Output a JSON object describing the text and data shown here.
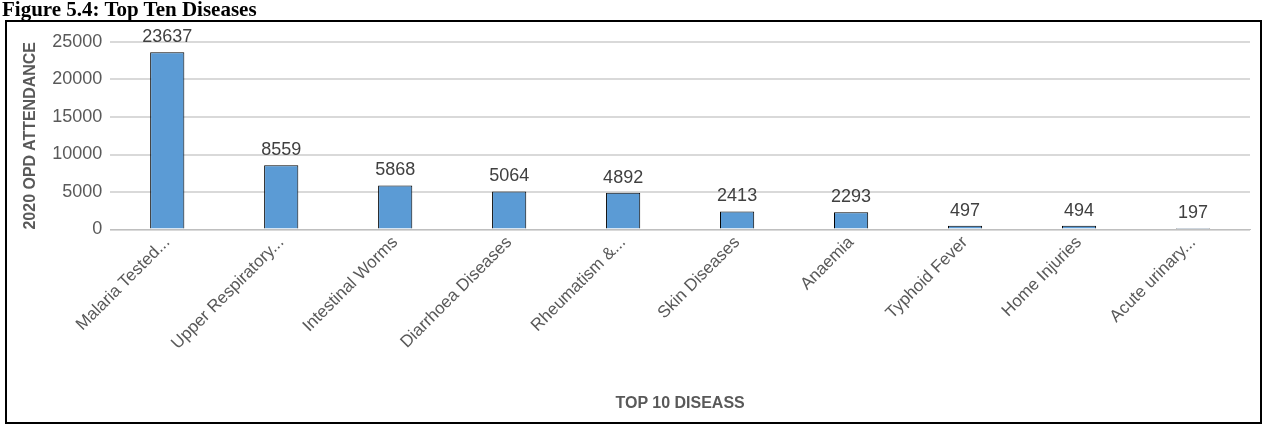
{
  "chart_data": {
    "type": "bar",
    "title": "Figure 5.4: Top Ten Diseases",
    "xlabel": "TOP 10 DISEASS",
    "ylabel": "2020 OPD ATTENDANCE",
    "categories": [
      "Malaria Tested...",
      "Upper Respiratory...",
      "Intestinal Worms",
      "Diarrhoea Diseases",
      "Rheumatism &...",
      "Skin Diseases",
      "Anaemia",
      "Typhoid Fever",
      "Home Injuries",
      "Acute urinary..."
    ],
    "values": [
      23637,
      8559,
      5868,
      5064,
      4892,
      2413,
      2293,
      497,
      494,
      197
    ],
    "color": "#5b9bd5",
    "ylim": [
      0,
      25000
    ],
    "yticks": [
      0,
      5000,
      10000,
      15000,
      20000,
      25000
    ],
    "grid": "y",
    "data_labels": true,
    "legend": false
  }
}
